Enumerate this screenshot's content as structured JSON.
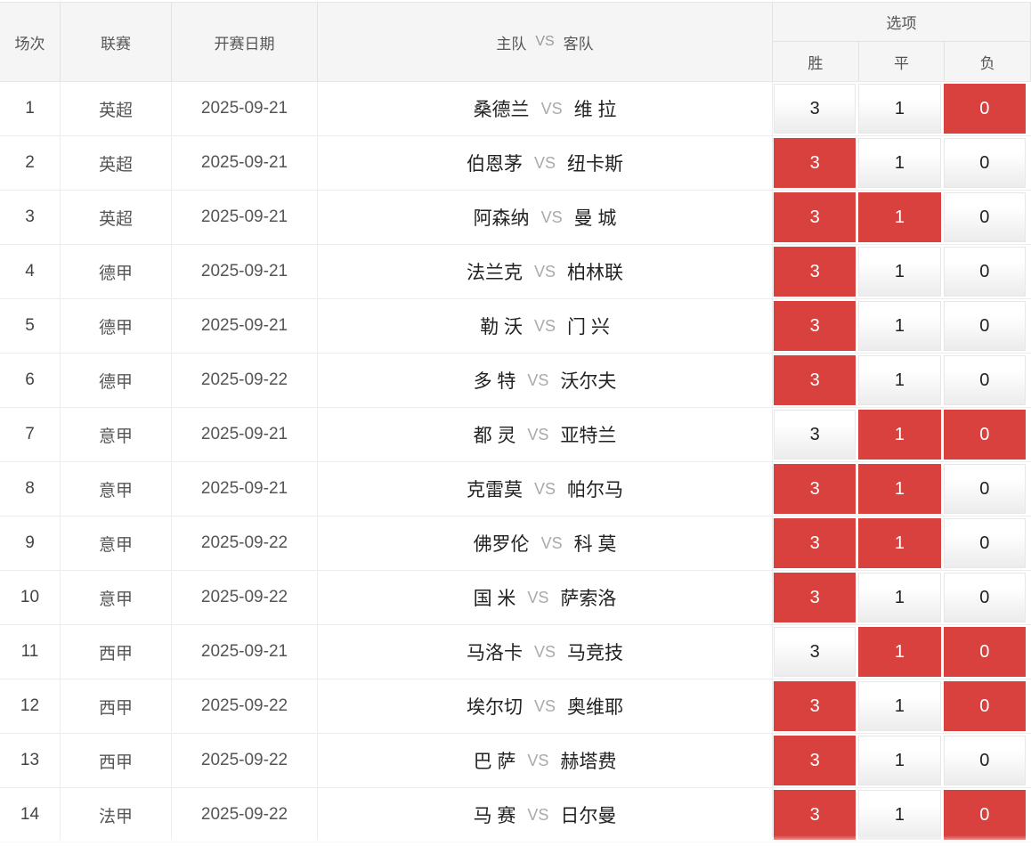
{
  "table": {
    "headers": {
      "match_no": "场次",
      "league": "联赛",
      "date": "开赛日期",
      "home": "主队",
      "vs": "VS",
      "away": "客队",
      "options_group": "选项",
      "win": "胜",
      "draw": "平",
      "lose": "负"
    },
    "rows": [
      {
        "no": "1",
        "league": "英超",
        "date": "2025-09-21",
        "home": "桑德兰",
        "away": "维 拉",
        "win": {
          "value": "3",
          "selected": false
        },
        "draw": {
          "value": "1",
          "selected": false
        },
        "lose": {
          "value": "0",
          "selected": true
        }
      },
      {
        "no": "2",
        "league": "英超",
        "date": "2025-09-21",
        "home": "伯恩茅",
        "away": "纽卡斯",
        "win": {
          "value": "3",
          "selected": true
        },
        "draw": {
          "value": "1",
          "selected": false
        },
        "lose": {
          "value": "0",
          "selected": false
        }
      },
      {
        "no": "3",
        "league": "英超",
        "date": "2025-09-21",
        "home": "阿森纳",
        "away": "曼 城",
        "win": {
          "value": "3",
          "selected": true
        },
        "draw": {
          "value": "1",
          "selected": true
        },
        "lose": {
          "value": "0",
          "selected": false
        }
      },
      {
        "no": "4",
        "league": "德甲",
        "date": "2025-09-21",
        "home": "法兰克",
        "away": "柏林联",
        "win": {
          "value": "3",
          "selected": true
        },
        "draw": {
          "value": "1",
          "selected": false
        },
        "lose": {
          "value": "0",
          "selected": false
        }
      },
      {
        "no": "5",
        "league": "德甲",
        "date": "2025-09-21",
        "home": "勒 沃",
        "away": "门 兴",
        "win": {
          "value": "3",
          "selected": true
        },
        "draw": {
          "value": "1",
          "selected": false
        },
        "lose": {
          "value": "0",
          "selected": false
        }
      },
      {
        "no": "6",
        "league": "德甲",
        "date": "2025-09-22",
        "home": "多 特",
        "away": "沃尔夫",
        "win": {
          "value": "3",
          "selected": true
        },
        "draw": {
          "value": "1",
          "selected": false
        },
        "lose": {
          "value": "0",
          "selected": false
        }
      },
      {
        "no": "7",
        "league": "意甲",
        "date": "2025-09-21",
        "home": "都 灵",
        "away": "亚特兰",
        "win": {
          "value": "3",
          "selected": false
        },
        "draw": {
          "value": "1",
          "selected": true
        },
        "lose": {
          "value": "0",
          "selected": true
        }
      },
      {
        "no": "8",
        "league": "意甲",
        "date": "2025-09-21",
        "home": "克雷莫",
        "away": "帕尔马",
        "win": {
          "value": "3",
          "selected": true
        },
        "draw": {
          "value": "1",
          "selected": true
        },
        "lose": {
          "value": "0",
          "selected": false
        }
      },
      {
        "no": "9",
        "league": "意甲",
        "date": "2025-09-22",
        "home": "佛罗伦",
        "away": "科 莫",
        "win": {
          "value": "3",
          "selected": true
        },
        "draw": {
          "value": "1",
          "selected": true
        },
        "lose": {
          "value": "0",
          "selected": false
        }
      },
      {
        "no": "10",
        "league": "意甲",
        "date": "2025-09-22",
        "home": "国 米",
        "away": "萨索洛",
        "win": {
          "value": "3",
          "selected": true
        },
        "draw": {
          "value": "1",
          "selected": false
        },
        "lose": {
          "value": "0",
          "selected": false
        }
      },
      {
        "no": "11",
        "league": "西甲",
        "date": "2025-09-21",
        "home": "马洛卡",
        "away": "马竞技",
        "win": {
          "value": "3",
          "selected": false
        },
        "draw": {
          "value": "1",
          "selected": true
        },
        "lose": {
          "value": "0",
          "selected": true
        }
      },
      {
        "no": "12",
        "league": "西甲",
        "date": "2025-09-22",
        "home": "埃尔切",
        "away": "奥维耶",
        "win": {
          "value": "3",
          "selected": true
        },
        "draw": {
          "value": "1",
          "selected": false
        },
        "lose": {
          "value": "0",
          "selected": true
        }
      },
      {
        "no": "13",
        "league": "西甲",
        "date": "2025-09-22",
        "home": "巴 萨",
        "away": "赫塔费",
        "win": {
          "value": "3",
          "selected": true
        },
        "draw": {
          "value": "1",
          "selected": false
        },
        "lose": {
          "value": "0",
          "selected": false
        }
      },
      {
        "no": "14",
        "league": "法甲",
        "date": "2025-09-22",
        "home": "马 赛",
        "away": "日尔曼",
        "win": {
          "value": "3",
          "selected": true
        },
        "draw": {
          "value": "1",
          "selected": false
        },
        "lose": {
          "value": "0",
          "selected": true
        }
      }
    ]
  },
  "colors": {
    "selected_bg": "#d8413e",
    "selected_text": "#ffffff",
    "header_bg": "#f5f5f5",
    "border": "#e8e8e8"
  }
}
